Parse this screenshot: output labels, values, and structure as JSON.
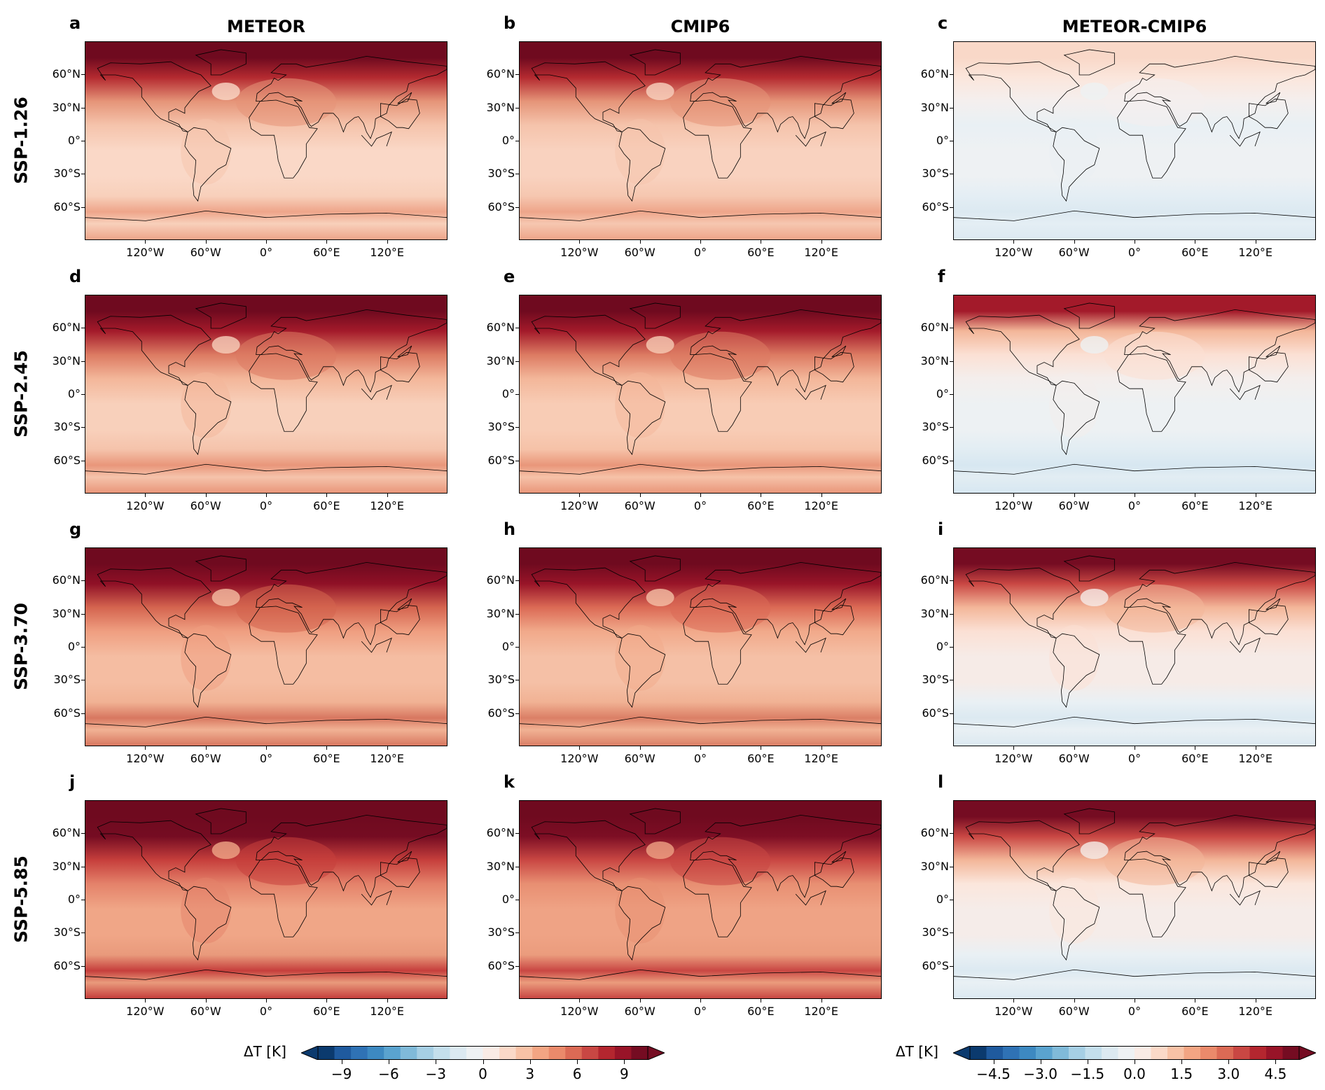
{
  "columns": [
    "METEOR",
    "CMIP6",
    "METEOR-CMIP6"
  ],
  "rows": [
    "SSP-1.26",
    "SSP-2.45",
    "SSP-3.70",
    "SSP-5.85"
  ],
  "panel_letters": [
    "a",
    "b",
    "c",
    "d",
    "e",
    "f",
    "g",
    "h",
    "i",
    "j",
    "k",
    "l"
  ],
  "lat_ticks": [
    "60°N",
    "30°N",
    "0°",
    "30°S",
    "60°S"
  ],
  "lon_ticks": [
    "120°W",
    "60°W",
    "0°",
    "60°E",
    "120°E"
  ],
  "colorbars": [
    {
      "label": "ΔT [K]",
      "ticks": [
        "−9",
        "−6",
        "−3",
        "0",
        "3",
        "6",
        "9"
      ],
      "range": [
        -10.5,
        10.5
      ]
    },
    {
      "label": "ΔT [K]",
      "ticks": [
        "−4.5",
        "−3.0",
        "−1.5",
        "0.0",
        "1.5",
        "3.0",
        "4.5"
      ],
      "range": [
        -5.25,
        5.25
      ]
    }
  ],
  "palette": [
    "#0b3a6e",
    "#1f5a9e",
    "#2f72b5",
    "#3d89c1",
    "#5aa3cf",
    "#80bad9",
    "#a6cfe4",
    "#c4dfec",
    "#dce9f1",
    "#eef1f3",
    "#f9ebe5",
    "#fbd9c8",
    "#f8c2a6",
    "#f3a583",
    "#ea8a6b",
    "#db6a55",
    "#c94743",
    "#b4262f",
    "#981428",
    "#750c22"
  ],
  "panel_fields": [
    [
      "#6f0a1f",
      "#b42a30",
      "#e59478",
      "#f5c3ab",
      "#fad8c7",
      "#f8d0bb",
      "#eea58a"
    ],
    [
      "#6f0a1f",
      "#b42a30",
      "#e59478",
      "#f5c3ab",
      "#f9d2bf",
      "#f6c7b0",
      "#eea58a"
    ],
    [
      "#f9d8c8",
      "#fbe6dc",
      "#f4efee",
      "#e9f0f4",
      "#eef1f3",
      "#e4eef4",
      "#dce9f1"
    ],
    [
      "#6f0a1f",
      "#a31a2a",
      "#dc7a62",
      "#f3b699",
      "#f8d0bb",
      "#f5c3ab",
      "#e9967a"
    ],
    [
      "#6f0a1f",
      "#a31a2a",
      "#dc7a62",
      "#f3b699",
      "#f8ccb5",
      "#f6c2a8",
      "#e9967a"
    ],
    [
      "#a31a2a",
      "#f3b699",
      "#fbe0d4",
      "#f4eeec",
      "#edf1f3",
      "#e2edf3",
      "#d7e7f1"
    ],
    [
      "#6f0a1f",
      "#8f1026",
      "#d4644f",
      "#ef9e80",
      "#f5bda2",
      "#f1b294",
      "#d87760"
    ],
    [
      "#6f0a1f",
      "#981428",
      "#db6a55",
      "#f1a98a",
      "#f5c0a6",
      "#f1b294",
      "#db7f66"
    ],
    [
      "#750c22",
      "#c94743",
      "#f3b699",
      "#fbe0d4",
      "#f6ebe7",
      "#e9f0f4",
      "#dce9f1"
    ],
    [
      "#6f0a1f",
      "#750c22",
      "#c63f3c",
      "#e4826a",
      "#f0a687",
      "#e99a7c",
      "#c63f3c"
    ],
    [
      "#6f0a1f",
      "#7d0e24",
      "#c94743",
      "#e88f72",
      "#efa385",
      "#eb9c7d",
      "#c94743"
    ],
    [
      "#750c22",
      "#c94743",
      "#f3b699",
      "#fbe6dc",
      "#f5ece9",
      "#e9f0f4",
      "#dce9f1"
    ]
  ]
}
